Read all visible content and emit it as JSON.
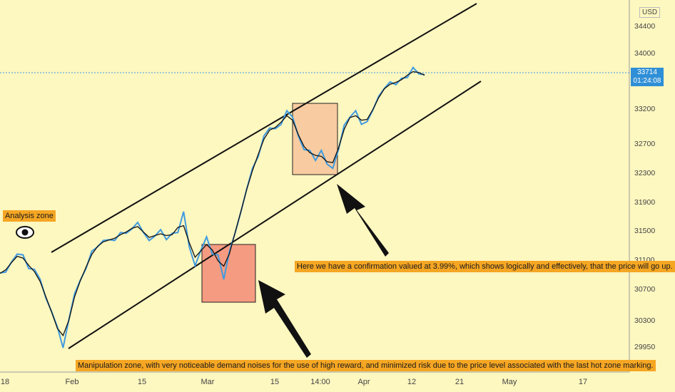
{
  "chart_data": {
    "type": "line",
    "currency": "USD",
    "last_price": "33714",
    "countdown": "01:24:08",
    "y_ticks": [
      "34400",
      "34000",
      "33200",
      "32700",
      "32300",
      "31900",
      "31500",
      "31100",
      "30700",
      "30300",
      "29950"
    ],
    "x_ticks": [
      "18",
      "Feb",
      "15",
      "Mar",
      "15",
      "14:00",
      "Apr",
      "12",
      "21",
      "May",
      "17"
    ],
    "series": [
      {
        "values": [
          30950,
          31000,
          31100,
          31250,
          31200,
          31050,
          31000,
          30900,
          30600,
          30450,
          30200,
          29950,
          30300,
          30700,
          30850,
          31050,
          31250,
          31350,
          31400,
          31450,
          31400,
          31550,
          31500,
          31600,
          31650,
          31550,
          31400,
          31500,
          31550,
          31450,
          31500,
          31550,
          31800,
          31350,
          31050,
          31300,
          31450,
          31250,
          31200,
          30900,
          31250,
          31550,
          31800,
          32150,
          32400,
          32600,
          32850,
          33000,
          32950,
          33050,
          33200,
          33150,
          32850,
          32700,
          32650,
          32550,
          32650,
          32500,
          32400,
          32700,
          33000,
          33150,
          33200,
          33050,
          33050,
          33250,
          33400,
          33550,
          33600,
          33600,
          33650,
          33700,
          33800,
          33750,
          33700
        ]
      }
    ],
    "annotations": {
      "analysis": "Analysis zone",
      "confirmation": "Here we have a confirmation valued at 3.99%, which shows logically and effectively, that the price will go up.",
      "manipulation": "Manipulation zone, with very noticeable demand noises for the use of high reward, and minimized risk due to the price level associated with the last hot zone marking."
    }
  }
}
